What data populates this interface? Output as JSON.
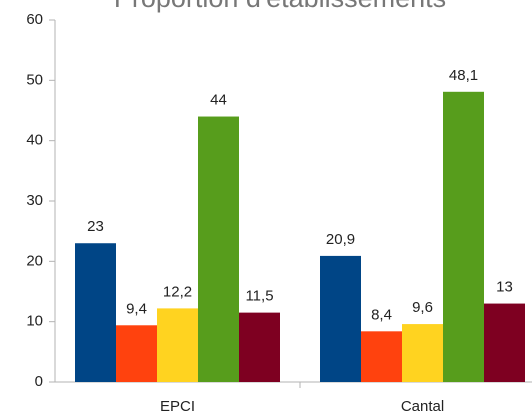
{
  "chart_data": {
    "type": "bar",
    "title": "Proportion d'établissements",
    "categories": [
      "EPCI",
      "Cantal"
    ],
    "series": [
      {
        "color": "#004586",
        "values": [
          23,
          20.9
        ],
        "value_labels": [
          "23",
          "20,9"
        ]
      },
      {
        "color": "#ff420e",
        "values": [
          9.4,
          8.4
        ],
        "value_labels": [
          "9,4",
          "8,4"
        ]
      },
      {
        "color": "#ffd320",
        "values": [
          12.2,
          9.6
        ],
        "value_labels": [
          "12,2",
          "9,6"
        ]
      },
      {
        "color": "#579d1c",
        "values": [
          44,
          48.1
        ],
        "value_labels": [
          "44",
          "48,1"
        ]
      },
      {
        "color": "#7e0021",
        "values": [
          11.5,
          13
        ],
        "value_labels": [
          "11,5",
          "13"
        ]
      }
    ],
    "ylim": [
      0,
      60
    ],
    "yticks": [
      0,
      10,
      20,
      30,
      40,
      50,
      60
    ],
    "grid": false
  }
}
